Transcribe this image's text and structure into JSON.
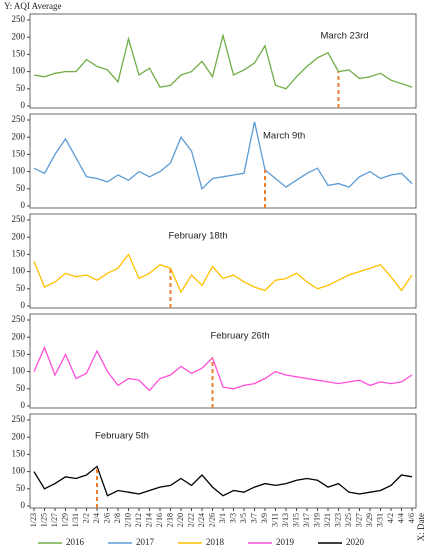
{
  "chart_data": {
    "type": "line",
    "y_label": "Y: AQI Average",
    "x_label": "X: Date",
    "categories": [
      "1/23",
      "1/25",
      "1/27",
      "1/29",
      "1/31",
      "2/2",
      "2/4",
      "2/6",
      "2/8",
      "2/10",
      "2/12",
      "2/14",
      "2/16",
      "2/18",
      "2/20",
      "2/22",
      "2/24",
      "2/26",
      "3/1",
      "3/3",
      "3/5",
      "3/7",
      "3/9",
      "3/11",
      "3/13",
      "3/15",
      "3/17",
      "3/19",
      "3/21",
      "3/23",
      "3/25",
      "3/27",
      "3/29",
      "3/31",
      "4/2",
      "4/4",
      "4/6"
    ],
    "ylim": [
      0,
      250
    ],
    "yticks": [
      0,
      50,
      100,
      150,
      200,
      250
    ],
    "series": [
      {
        "name": "2016",
        "color": "#70ad47",
        "annotation": {
          "text": "March 23rd",
          "category": "3/23"
        },
        "values": [
          90,
          85,
          95,
          100,
          100,
          135,
          115,
          105,
          70,
          195,
          90,
          110,
          55,
          60,
          90,
          100,
          130,
          85,
          205,
          90,
          105,
          125,
          175,
          60,
          50,
          85,
          115,
          140,
          155,
          100,
          105,
          80,
          85,
          95,
          75,
          65,
          55
        ]
      },
      {
        "name": "2017",
        "color": "#5b9bd5",
        "annotation": {
          "text": "March 9th",
          "category": "3/9"
        },
        "values": [
          110,
          95,
          150,
          195,
          140,
          85,
          80,
          70,
          90,
          75,
          100,
          85,
          100,
          125,
          200,
          160,
          50,
          80,
          85,
          90,
          95,
          245,
          105,
          80,
          55,
          75,
          95,
          110,
          60,
          65,
          55,
          85,
          100,
          80,
          90,
          95,
          65
        ]
      },
      {
        "name": "2018",
        "color": "#ffc000",
        "annotation": {
          "text": "February 18th",
          "category": "2/18"
        },
        "values": [
          130,
          55,
          70,
          95,
          85,
          90,
          75,
          95,
          110,
          150,
          80,
          95,
          120,
          110,
          40,
          90,
          60,
          115,
          80,
          90,
          70,
          55,
          45,
          75,
          80,
          95,
          70,
          50,
          60,
          75,
          90,
          100,
          110,
          120,
          85,
          45,
          90
        ]
      },
      {
        "name": "2019",
        "color": "#ff4fd8",
        "annotation": {
          "text": "February 26th",
          "category": "2/26"
        },
        "values": [
          100,
          170,
          90,
          150,
          80,
          95,
          160,
          100,
          60,
          80,
          75,
          45,
          80,
          90,
          115,
          95,
          110,
          140,
          55,
          50,
          60,
          65,
          80,
          100,
          90,
          85,
          80,
          75,
          70,
          65,
          70,
          75,
          60,
          70,
          65,
          70,
          90
        ]
      },
      {
        "name": "2020",
        "color": "#000000",
        "annotation": {
          "text": "February 5th",
          "category": "2/4"
        },
        "values": [
          100,
          50,
          65,
          85,
          80,
          90,
          115,
          30,
          45,
          40,
          35,
          45,
          55,
          60,
          80,
          60,
          90,
          55,
          30,
          45,
          40,
          55,
          65,
          60,
          65,
          75,
          80,
          75,
          55,
          65,
          40,
          35,
          40,
          45,
          60,
          90,
          85
        ]
      }
    ]
  }
}
